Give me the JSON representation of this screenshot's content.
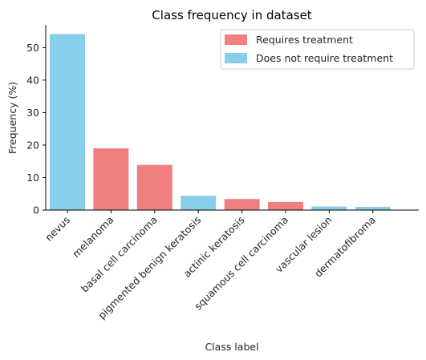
{
  "chart_data": {
    "type": "bar",
    "title": "Class frequency in dataset",
    "xlabel": "Class label",
    "ylabel": "Frequency (%)",
    "categories": [
      "nevus",
      "melanoma",
      "basal cell carcinoma",
      "pigmented benign keratosis",
      "actinic keratosis",
      "squamous cell carcinoma",
      "vascular lesion",
      "dermatofibroma"
    ],
    "values": [
      54.2,
      19.0,
      13.9,
      4.4,
      3.4,
      2.5,
      1.1,
      1.0
    ],
    "groups": [
      "Does not require treatment",
      "Requires treatment",
      "Requires treatment",
      "Does not require treatment",
      "Requires treatment",
      "Requires treatment",
      "Does not require treatment",
      "Does not require treatment"
    ],
    "ylim": [
      0,
      57
    ],
    "yticks": [
      0,
      10,
      20,
      30,
      40,
      50
    ],
    "grid": false,
    "legend": {
      "position": "top-right",
      "entries": [
        {
          "label": "Requires treatment",
          "color": "#F08080"
        },
        {
          "label": "Does not require treatment",
          "color": "#87CEEB"
        }
      ]
    }
  }
}
